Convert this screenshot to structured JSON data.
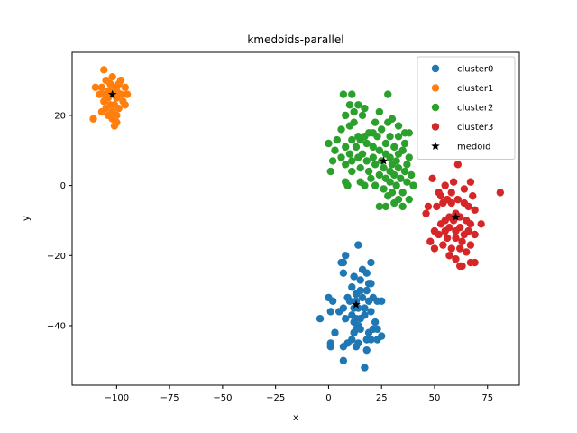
{
  "chart_data": {
    "type": "scatter",
    "title": "kmedoids-parallel",
    "xlabel": "x",
    "ylabel": "y",
    "xlim": [
      -121,
      90
    ],
    "ylim": [
      -57,
      38
    ],
    "xticks": [
      -100,
      -75,
      -50,
      -25,
      0,
      25,
      50,
      75
    ],
    "yticks": [
      -40,
      -20,
      0,
      20
    ],
    "xtick_labels": [
      "−100",
      "−75",
      "−50",
      "−25",
      "0",
      "25",
      "50",
      "75"
    ],
    "ytick_labels": [
      "−40",
      "−20",
      "0",
      "20"
    ],
    "grid": false,
    "legend_position": "top-right",
    "series": [
      {
        "name": "cluster0",
        "color": "#1f77b4",
        "marker": "circle",
        "points": [
          [
            14,
            -17
          ],
          [
            6,
            -22
          ],
          [
            7,
            -22
          ],
          [
            8,
            -20
          ],
          [
            7,
            -25
          ],
          [
            16,
            -24
          ],
          [
            18,
            -25
          ],
          [
            20,
            -22
          ],
          [
            12,
            -26
          ],
          [
            15,
            -27
          ],
          [
            19,
            -28
          ],
          [
            20,
            -28
          ],
          [
            11,
            -29
          ],
          [
            15,
            -30
          ],
          [
            18,
            -30
          ],
          [
            13,
            -31
          ],
          [
            9,
            -32
          ],
          [
            16,
            -32
          ],
          [
            21,
            -32
          ],
          [
            10,
            -33
          ],
          [
            13,
            -33
          ],
          [
            19,
            -33
          ],
          [
            25,
            -33
          ],
          [
            0,
            -32
          ],
          [
            2,
            -33
          ],
          [
            23,
            -33
          ],
          [
            7,
            -35
          ],
          [
            12,
            -35
          ],
          [
            14,
            -35
          ],
          [
            17,
            -35
          ],
          [
            20,
            -36
          ],
          [
            1,
            -36
          ],
          [
            5,
            -36
          ],
          [
            11,
            -37
          ],
          [
            17,
            -37
          ],
          [
            13,
            -38
          ],
          [
            15,
            -38
          ],
          [
            8,
            -38
          ],
          [
            -4,
            -38
          ],
          [
            12,
            -39
          ],
          [
            14,
            -40
          ],
          [
            22,
            -39
          ],
          [
            13,
            -41
          ],
          [
            15,
            -41
          ],
          [
            21,
            -41
          ],
          [
            23,
            -41
          ],
          [
            3,
            -42
          ],
          [
            12,
            -42
          ],
          [
            19,
            -42
          ],
          [
            25,
            -43
          ],
          [
            23,
            -44
          ],
          [
            20,
            -44
          ],
          [
            11,
            -44
          ],
          [
            14,
            -45
          ],
          [
            18,
            -44
          ],
          [
            1,
            -45
          ],
          [
            9,
            -45
          ],
          [
            7,
            -46
          ],
          [
            13,
            -46
          ],
          [
            1,
            -46
          ],
          [
            18,
            -47
          ],
          [
            7,
            -50
          ],
          [
            17,
            -52
          ]
        ]
      },
      {
        "name": "cluster1",
        "color": "#ff7f0e",
        "marker": "circle",
        "points": [
          [
            -106,
            33
          ],
          [
            -102,
            31
          ],
          [
            -98,
            30
          ],
          [
            -105,
            30
          ],
          [
            -99,
            29
          ],
          [
            -103,
            29
          ],
          [
            -107,
            28
          ],
          [
            -110,
            28
          ],
          [
            -101,
            28
          ],
          [
            -96,
            28
          ],
          [
            -104,
            27
          ],
          [
            -100,
            27
          ],
          [
            -108,
            26
          ],
          [
            -106,
            26
          ],
          [
            -102,
            26
          ],
          [
            -98,
            26
          ],
          [
            -95,
            26
          ],
          [
            -104,
            25
          ],
          [
            -100,
            25
          ],
          [
            -106,
            24
          ],
          [
            -97,
            24
          ],
          [
            -103,
            23
          ],
          [
            -101,
            23
          ],
          [
            -96,
            23
          ],
          [
            -105,
            22
          ],
          [
            -99,
            22
          ],
          [
            -102,
            21
          ],
          [
            -107,
            21
          ],
          [
            -100,
            20
          ],
          [
            -104,
            20
          ],
          [
            -111,
            19
          ],
          [
            -102,
            19
          ],
          [
            -100,
            18
          ],
          [
            -101,
            17
          ]
        ]
      },
      {
        "name": "cluster2",
        "color": "#2ca02c",
        "marker": "circle",
        "points": [
          [
            7,
            26
          ],
          [
            11,
            26
          ],
          [
            28,
            26
          ],
          [
            10,
            23
          ],
          [
            14,
            23
          ],
          [
            17,
            22
          ],
          [
            24,
            21
          ],
          [
            12,
            21
          ],
          [
            16,
            20
          ],
          [
            8,
            20
          ],
          [
            30,
            19
          ],
          [
            22,
            18
          ],
          [
            12,
            18
          ],
          [
            28,
            18
          ],
          [
            10,
            17
          ],
          [
            33,
            17
          ],
          [
            6,
            16
          ],
          [
            25,
            16
          ],
          [
            19,
            15
          ],
          [
            21,
            15
          ],
          [
            36,
            15
          ],
          [
            38,
            15
          ],
          [
            14,
            14
          ],
          [
            17,
            14
          ],
          [
            23,
            14
          ],
          [
            29,
            14
          ],
          [
            33,
            14
          ],
          [
            4,
            13
          ],
          [
            11,
            13
          ],
          [
            15,
            13
          ],
          [
            18,
            12
          ],
          [
            27,
            12
          ],
          [
            36,
            12
          ],
          [
            0,
            12
          ],
          [
            8,
            11
          ],
          [
            13,
            11
          ],
          [
            21,
            11
          ],
          [
            31,
            11
          ],
          [
            3,
            10
          ],
          [
            24,
            10
          ],
          [
            35,
            10
          ],
          [
            10,
            9
          ],
          [
            16,
            9
          ],
          [
            27,
            9
          ],
          [
            33,
            9
          ],
          [
            6,
            8
          ],
          [
            14,
            8
          ],
          [
            21,
            8
          ],
          [
            29,
            8
          ],
          [
            38,
            8
          ],
          [
            2,
            7
          ],
          [
            11,
            7
          ],
          [
            18,
            7
          ],
          [
            25,
            7
          ],
          [
            32,
            7
          ],
          [
            30,
            6
          ],
          [
            37,
            6
          ],
          [
            8,
            6
          ],
          [
            22,
            6
          ],
          [
            15,
            5
          ],
          [
            26,
            5
          ],
          [
            33,
            5
          ],
          [
            19,
            4
          ],
          [
            29,
            4
          ],
          [
            36,
            4
          ],
          [
            1,
            4
          ],
          [
            11,
            4
          ],
          [
            24,
            3
          ],
          [
            31,
            3
          ],
          [
            39,
            3
          ],
          [
            27,
            2
          ],
          [
            34,
            2
          ],
          [
            20,
            2
          ],
          [
            15,
            1
          ],
          [
            8,
            1
          ],
          [
            29,
            1
          ],
          [
            37,
            1
          ],
          [
            22,
            0
          ],
          [
            9,
            0
          ],
          [
            32,
            0
          ],
          [
            17,
            0
          ],
          [
            40,
            0
          ],
          [
            26,
            -1
          ],
          [
            30,
            -2
          ],
          [
            35,
            -2
          ],
          [
            28,
            -3
          ],
          [
            33,
            -4
          ],
          [
            38,
            -4
          ],
          [
            31,
            -5
          ],
          [
            27,
            -6
          ],
          [
            24,
            -6
          ],
          [
            35,
            -6
          ]
        ]
      },
      {
        "name": "cluster3",
        "color": "#d62728",
        "marker": "circle",
        "points": [
          [
            61,
            6
          ],
          [
            49,
            2
          ],
          [
            59,
            1
          ],
          [
            67,
            1
          ],
          [
            55,
            0
          ],
          [
            64,
            -1
          ],
          [
            52,
            -2
          ],
          [
            58,
            -2
          ],
          [
            53,
            -3
          ],
          [
            56,
            -4
          ],
          [
            61,
            -4
          ],
          [
            68,
            -3
          ],
          [
            81,
            -2
          ],
          [
            54,
            -5
          ],
          [
            58,
            -5
          ],
          [
            64,
            -5
          ],
          [
            51,
            -6
          ],
          [
            47,
            -6
          ],
          [
            66,
            -6
          ],
          [
            69,
            -7
          ],
          [
            60,
            -8
          ],
          [
            46,
            -8
          ],
          [
            57,
            -9
          ],
          [
            62,
            -9
          ],
          [
            55,
            -10
          ],
          [
            65,
            -10
          ],
          [
            59,
            -10
          ],
          [
            53,
            -11
          ],
          [
            67,
            -11
          ],
          [
            72,
            -11
          ],
          [
            57,
            -12
          ],
          [
            62,
            -12
          ],
          [
            50,
            -13
          ],
          [
            55,
            -13
          ],
          [
            60,
            -13
          ],
          [
            66,
            -13
          ],
          [
            52,
            -14
          ],
          [
            64,
            -14
          ],
          [
            69,
            -14
          ],
          [
            56,
            -15
          ],
          [
            60,
            -15
          ],
          [
            48,
            -16
          ],
          [
            63,
            -16
          ],
          [
            54,
            -17
          ],
          [
            67,
            -17
          ],
          [
            58,
            -18
          ],
          [
            62,
            -18
          ],
          [
            50,
            -18
          ],
          [
            65,
            -19
          ],
          [
            57,
            -20
          ],
          [
            60,
            -21
          ],
          [
            69,
            -22
          ],
          [
            67,
            -22
          ],
          [
            63,
            -23
          ],
          [
            62,
            -23
          ]
        ]
      },
      {
        "name": "medoid",
        "color": "#000000",
        "marker": "star",
        "points": [
          [
            13,
            -34
          ],
          [
            -102,
            26
          ],
          [
            26,
            7
          ],
          [
            60,
            -9
          ]
        ]
      }
    ]
  }
}
